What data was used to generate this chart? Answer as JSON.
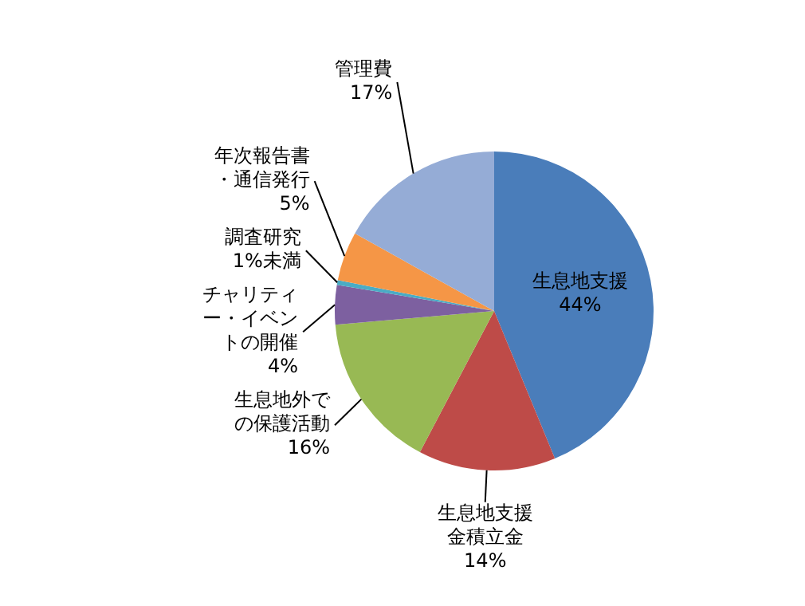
{
  "chart_data": {
    "type": "pie",
    "categories": [
      "生息地支援",
      "生息地支援金積立金",
      "生息地外での保護活動",
      "チャリティー・イベントの開催",
      "調査研究",
      "年次報告書・通信発行",
      "管理費"
    ],
    "values": [
      44,
      14,
      16,
      4,
      0.5,
      5,
      17
    ],
    "colors": [
      "#4a7dba",
      "#be4b48",
      "#98b954",
      "#7d60a0",
      "#4aacc5",
      "#f59646",
      "#95acd6"
    ],
    "value_labels": [
      "44%",
      "14%",
      "16%",
      "4%",
      "1%未満",
      "5%",
      "17%"
    ],
    "legend": false
  }
}
